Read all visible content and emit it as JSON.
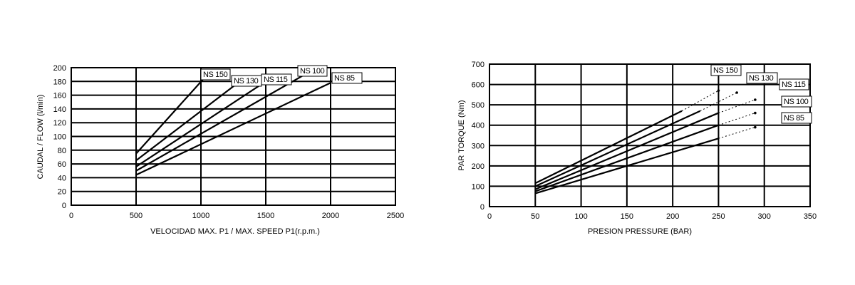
{
  "chart_data": [
    {
      "type": "line",
      "title": "",
      "xlabel": "VELOCIDAD MAX. P1 / MAX. SPEED P1(r.p.m.)",
      "ylabel": "CAUDAL / FLOW (l/min)",
      "xlim": [
        0,
        2500
      ],
      "ylim": [
        0,
        200
      ],
      "xticks": [
        "0",
        "500",
        "1000",
        "1500",
        "2000",
        "2500"
      ],
      "yticks": [
        "0",
        "20",
        "40",
        "60",
        "80",
        "100",
        "120",
        "140",
        "160",
        "180",
        "200"
      ],
      "grid": true,
      "series": [
        {
          "name": "NS 150",
          "points": [
            [
              500,
              75
            ],
            [
              1050,
              190
            ]
          ]
        },
        {
          "name": "NS 130",
          "points": [
            [
              500,
              65
            ],
            [
              1300,
              180
            ]
          ]
        },
        {
          "name": "NS 115",
          "points": [
            [
              500,
              56
            ],
            [
              1500,
              180
            ]
          ]
        },
        {
          "name": "NS 100",
          "points": [
            [
              500,
              50
            ],
            [
              1800,
              190
            ]
          ]
        },
        {
          "name": "NS 85",
          "points": [
            [
              500,
              44
            ],
            [
              2000,
              178
            ]
          ]
        }
      ]
    },
    {
      "type": "line",
      "title": "",
      "xlabel": "PRESION PRESSURE (BAR)",
      "ylabel": "PAR TORQUE (Nm)",
      "xlim": [
        0,
        350
      ],
      "ylim": [
        0,
        700
      ],
      "xticks": [
        "0",
        "50",
        "100",
        "150",
        "200",
        "250",
        "300",
        "350"
      ],
      "yticks": [
        "0",
        "100",
        "200",
        "300",
        "400",
        "500",
        "600",
        "700"
      ],
      "grid": true,
      "series": [
        {
          "name": "NS 150",
          "points": [
            [
              50,
              115
            ],
            [
              210,
              470
            ]
          ],
          "dotted_extension": [
            [
              210,
              470
            ],
            [
              250,
              570
            ]
          ]
        },
        {
          "name": "NS 130",
          "points": [
            [
              50,
              100
            ],
            [
              230,
              470
            ]
          ],
          "dotted_extension": [
            [
              230,
              470
            ],
            [
              270,
              560
            ]
          ]
        },
        {
          "name": "NS 115",
          "points": [
            [
              50,
              85
            ],
            [
              250,
              460
            ]
          ],
          "dotted_extension": [
            [
              250,
              460
            ],
            [
              290,
              525
            ]
          ]
        },
        {
          "name": "NS 100",
          "points": [
            [
              50,
              75
            ],
            [
              250,
              400
            ]
          ],
          "dotted_extension": [
            [
              250,
              400
            ],
            [
              290,
              460
            ]
          ]
        },
        {
          "name": "NS 85",
          "points": [
            [
              50,
              65
            ],
            [
              250,
              335
            ]
          ],
          "dotted_extension": [
            [
              250,
              335
            ],
            [
              290,
              390
            ]
          ]
        }
      ]
    }
  ]
}
